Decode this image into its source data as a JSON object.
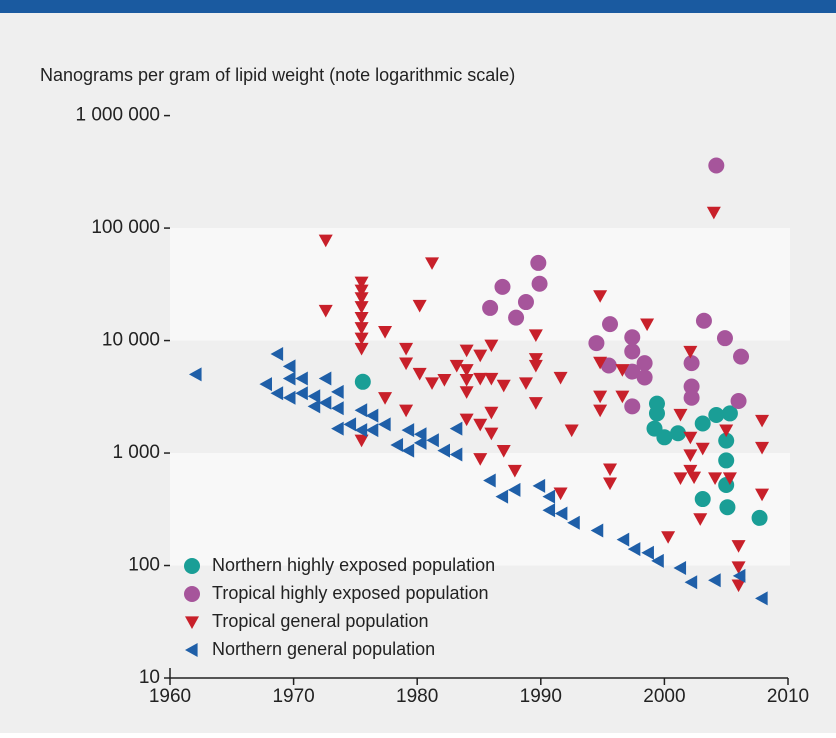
{
  "chart_data": {
    "type": "scatter",
    "title": "Nanograms per gram of lipid weight (note logarithmic scale)",
    "log_y": true,
    "grid": true,
    "legend": "lower left",
    "xlim": [
      1960,
      2010
    ],
    "xticks": [
      1960,
      1970,
      1980,
      1990,
      2000,
      2010
    ],
    "ylim": [
      10,
      1000000
    ],
    "yticks": [
      10,
      100,
      {
        "value": 1000,
        "label": "1 000"
      },
      {
        "value": 10000,
        "label": "10 000"
      },
      {
        "value": 100000,
        "label": "100 000"
      },
      {
        "value": 1000000,
        "label": "1 000 000"
      }
    ],
    "series": [
      {
        "name": "Northern highly exposed population",
        "color": "#1a9e96",
        "marker": "circle",
        "x": [
          1975.6,
          1999.4,
          1999.4,
          1999.2,
          2000.0,
          2001.1,
          2003.1,
          2004.2,
          2005.3,
          2005.0,
          2005.0,
          2005.0,
          2003.1,
          2005.1,
          2007.7
        ],
        "values": [
          4300,
          2750,
          2250,
          1650,
          1380,
          1500,
          1830,
          2180,
          2250,
          1290,
          860,
          520,
          390,
          330,
          265
        ]
      },
      {
        "name": "Tropical highly exposed population",
        "color": "#a6559b",
        "marker": "circle",
        "x": [
          1985.9,
          1986.9,
          1988.0,
          1988.8,
          1989.8,
          1989.9,
          1994.5,
          1995.6,
          1995.5,
          1997.4,
          1997.4,
          1997.4,
          1998.4,
          1998.4,
          1997.4,
          2002.2,
          2002.2,
          2002.2,
          2003.2,
          2004.2,
          2004.9,
          2006.2,
          2006.0
        ],
        "values": [
          19500,
          30000,
          16000,
          22000,
          49000,
          32000,
          9500,
          14000,
          6000,
          10700,
          8000,
          5300,
          6300,
          4700,
          2600,
          6300,
          3900,
          3100,
          15000,
          360000,
          10500,
          7200,
          2900
        ]
      },
      {
        "name": "Tropical general population",
        "color": "#c8202a",
        "marker": "triangle-down",
        "x": [
          1972.6,
          1972.6,
          1975.5,
          1975.5,
          1975.5,
          1975.5,
          1975.5,
          1975.5,
          1975.5,
          1975.5,
          1975.5,
          1977.4,
          1977.4,
          1979.1,
          1979.1,
          1979.1,
          1980.2,
          1980.2,
          1981.2,
          1981.2,
          1982.2,
          1983.2,
          1984.0,
          1984.0,
          1984.0,
          1984.0,
          1984.0,
          1985.1,
          1985.1,
          1985.1,
          1985.1,
          1986.0,
          1986.0,
          1986.0,
          1986.0,
          1987.0,
          1987.0,
          1987.9,
          1988.8,
          1989.6,
          1989.6,
          1989.6,
          1989.6,
          1991.6,
          1991.6,
          1992.5,
          1994.8,
          1994.8,
          1994.8,
          1994.8,
          1995.6,
          1995.6,
          1996.6,
          1996.6,
          1998.6,
          2000.3,
          2001.3,
          2001.3,
          2002.1,
          2002.1,
          2002.1,
          2002.1,
          2002.4,
          2002.9,
          2003.1,
          2004.0,
          2004.1,
          2005.0,
          2005.3,
          2006.0,
          2006.0,
          2006.0,
          2007.9,
          2007.9,
          2007.9
        ],
        "values": [
          78000,
          18500,
          33000,
          28000,
          24000,
          20000,
          16000,
          13000,
          10500,
          8500,
          1300,
          12000,
          3100,
          8500,
          2400,
          6300,
          5100,
          20500,
          49000,
          4200,
          4500,
          6000,
          8200,
          5500,
          4500,
          3500,
          2000,
          7400,
          4600,
          1800,
          890,
          9100,
          4600,
          2300,
          1500,
          4000,
          1050,
          700,
          4200,
          11200,
          6900,
          6000,
          2800,
          4700,
          440,
          1600,
          25000,
          6400,
          3200,
          2400,
          720,
          540,
          5500,
          3200,
          14000,
          180,
          2200,
          600,
          8000,
          1380,
          960,
          700,
          610,
          260,
          1100,
          138000,
          600,
          1600,
          600,
          150,
          97,
          67,
          1950,
          1120,
          430
        ]
      },
      {
        "name": "Northern general population",
        "color": "#1f5fa8",
        "marker": "triangle-left",
        "x": [
          1962.1,
          1967.8,
          1968.7,
          1968.7,
          1969.7,
          1969.7,
          1969.7,
          1970.7,
          1970.7,
          1971.7,
          1971.7,
          1972.6,
          1972.6,
          1973.6,
          1973.6,
          1973.6,
          1974.6,
          1975.5,
          1975.5,
          1976.4,
          1976.4,
          1977.4,
          1978.4,
          1979.3,
          1979.3,
          1980.3,
          1980.3,
          1981.3,
          1982.2,
          1983.2,
          1983.2,
          1985.9,
          1986.9,
          1987.9,
          1989.9,
          1990.7,
          1990.7,
          1991.7,
          1992.7,
          1994.6,
          1996.7,
          1997.6,
          1998.7,
          1999.5,
          2001.3,
          2002.2,
          2004.1,
          2006.1,
          2007.9
        ],
        "values": [
          5000,
          4100,
          7600,
          3400,
          5900,
          4600,
          3100,
          4600,
          3400,
          3200,
          2600,
          4600,
          2800,
          3500,
          2500,
          1650,
          1800,
          2400,
          1600,
          2150,
          1600,
          1800,
          1180,
          1600,
          1050,
          1470,
          1230,
          1300,
          1050,
          970,
          1650,
          570,
          410,
          470,
          510,
          410,
          310,
          290,
          240,
          205,
          170,
          140,
          130,
          110,
          95,
          71,
          74,
          81,
          51
        ]
      }
    ]
  }
}
